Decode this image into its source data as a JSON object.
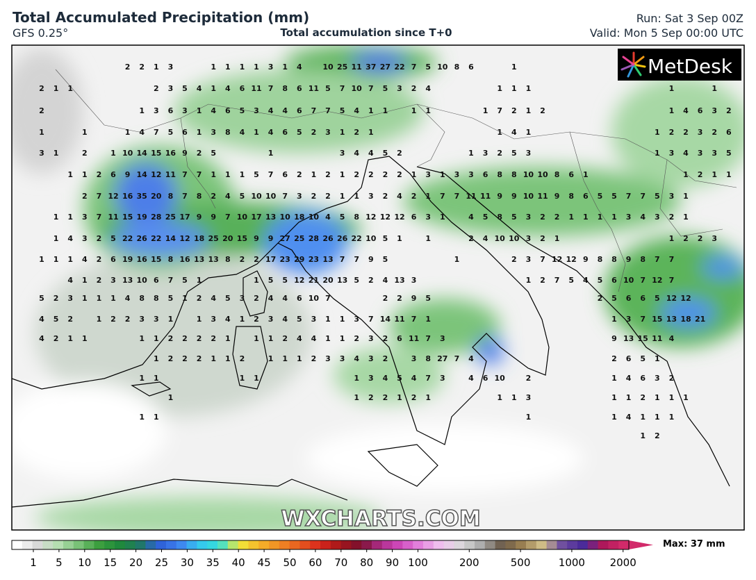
{
  "header": {
    "title": "Total Accumulated Precipitation (mm)",
    "model": "GFS 0.25°",
    "subtitle": "Total accumulation since T+0",
    "run": "Run: Sat 3 Sep 00Z",
    "valid": "Valid: Mon 5 Sep 00:00 UTC"
  },
  "logo": "MetDesk",
  "watermark": "WXCHARTS.COM",
  "map": {
    "grid": [
      [
        null,
        null,
        null,
        null,
        null,
        null,
        2,
        2,
        1,
        3,
        null,
        null,
        1,
        1,
        1,
        1,
        3,
        1,
        4,
        null,
        10,
        25,
        11,
        37,
        27,
        22,
        7,
        5,
        10,
        8,
        6,
        null,
        null,
        1
      ],
      [
        2,
        1,
        1,
        null,
        null,
        null,
        null,
        null,
        2,
        3,
        5,
        4,
        1,
        4,
        6,
        11,
        7,
        8,
        6,
        11,
        5,
        7,
        10,
        7,
        5,
        3,
        2,
        4,
        null,
        null,
        null,
        null,
        1,
        1,
        1,
        null,
        null,
        null,
        null,
        null,
        null,
        null,
        null,
        null,
        1,
        null,
        null,
        1
      ],
      [
        2,
        null,
        null,
        null,
        null,
        null,
        null,
        1,
        3,
        6,
        3,
        1,
        4,
        6,
        5,
        3,
        4,
        4,
        6,
        7,
        7,
        5,
        4,
        1,
        1,
        null,
        1,
        1,
        null,
        null,
        null,
        1,
        7,
        2,
        1,
        2,
        null,
        null,
        null,
        null,
        null,
        null,
        null,
        null,
        1,
        4,
        6,
        3,
        2
      ],
      [
        1,
        null,
        null,
        1,
        null,
        null,
        1,
        4,
        7,
        5,
        6,
        1,
        3,
        8,
        4,
        1,
        4,
        6,
        5,
        2,
        3,
        1,
        2,
        1,
        null,
        null,
        null,
        null,
        null,
        null,
        null,
        null,
        1,
        4,
        1,
        null,
        null,
        null,
        null,
        null,
        null,
        null,
        null,
        1,
        2,
        2,
        3,
        2,
        6
      ],
      [
        3,
        1,
        null,
        2,
        null,
        1,
        10,
        14,
        15,
        16,
        9,
        2,
        5,
        null,
        null,
        null,
        1,
        null,
        null,
        null,
        null,
        3,
        4,
        4,
        5,
        2,
        null,
        null,
        null,
        null,
        1,
        3,
        2,
        5,
        3,
        null,
        null,
        null,
        null,
        null,
        null,
        null,
        null,
        1,
        3,
        4,
        3,
        3,
        5
      ],
      [
        null,
        null,
        1,
        1,
        2,
        6,
        9,
        14,
        12,
        11,
        7,
        7,
        1,
        1,
        1,
        5,
        7,
        6,
        2,
        1,
        2,
        1,
        2,
        2,
        2,
        2,
        1,
        3,
        1,
        3,
        3,
        6,
        8,
        8,
        10,
        10,
        8,
        6,
        1,
        null,
        null,
        null,
        null,
        null,
        null,
        1,
        2,
        1,
        1
      ],
      [
        null,
        null,
        null,
        2,
        7,
        12,
        16,
        35,
        20,
        8,
        7,
        8,
        2,
        4,
        5,
        10,
        10,
        7,
        3,
        2,
        2,
        1,
        1,
        3,
        2,
        4,
        2,
        1,
        7,
        7,
        11,
        11,
        9,
        9,
        10,
        11,
        9,
        8,
        6,
        5,
        5,
        7,
        7,
        5,
        3,
        1
      ],
      [
        null,
        1,
        1,
        3,
        7,
        11,
        15,
        19,
        28,
        25,
        17,
        9,
        9,
        7,
        10,
        17,
        13,
        10,
        18,
        10,
        4,
        5,
        8,
        12,
        12,
        12,
        6,
        3,
        1,
        null,
        4,
        5,
        8,
        5,
        3,
        2,
        2,
        1,
        1,
        1,
        1,
        3,
        4,
        3,
        2,
        1
      ],
      [
        null,
        1,
        4,
        3,
        2,
        5,
        22,
        26,
        22,
        14,
        12,
        18,
        25,
        20,
        15,
        9,
        9,
        27,
        25,
        28,
        26,
        26,
        22,
        10,
        5,
        1,
        null,
        1,
        null,
        null,
        2,
        4,
        10,
        10,
        3,
        2,
        1,
        null,
        null,
        null,
        null,
        null,
        null,
        null,
        1,
        2,
        2,
        3
      ],
      [
        1,
        1,
        1,
        4,
        2,
        6,
        19,
        16,
        15,
        8,
        16,
        13,
        13,
        8,
        2,
        2,
        17,
        23,
        29,
        23,
        13,
        7,
        7,
        9,
        5,
        null,
        null,
        null,
        null,
        1,
        null,
        null,
        null,
        2,
        3,
        7,
        12,
        12,
        9,
        8,
        8,
        9,
        8,
        7,
        7
      ],
      [
        null,
        null,
        4,
        1,
        2,
        3,
        13,
        10,
        6,
        7,
        5,
        1,
        null,
        null,
        null,
        1,
        5,
        5,
        12,
        21,
        20,
        13,
        5,
        2,
        4,
        13,
        3,
        null,
        null,
        null,
        null,
        null,
        null,
        null,
        1,
        2,
        7,
        5,
        4,
        5,
        6,
        10,
        7,
        12,
        7
      ],
      [
        5,
        2,
        3,
        1,
        1,
        1,
        4,
        8,
        8,
        5,
        1,
        2,
        4,
        5,
        3,
        2,
        4,
        4,
        6,
        10,
        7,
        null,
        null,
        null,
        2,
        2,
        9,
        5,
        null,
        null,
        null,
        null,
        null,
        null,
        null,
        null,
        null,
        null,
        null,
        2,
        5,
        6,
        6,
        5,
        12,
        12
      ],
      [
        4,
        5,
        2,
        null,
        1,
        2,
        2,
        3,
        3,
        1,
        null,
        1,
        3,
        4,
        1,
        2,
        3,
        4,
        5,
        3,
        1,
        1,
        3,
        7,
        14,
        11,
        7,
        1,
        null,
        null,
        null,
        null,
        null,
        null,
        null,
        null,
        null,
        null,
        null,
        null,
        1,
        3,
        7,
        15,
        13,
        18,
        21
      ],
      [
        4,
        2,
        1,
        1,
        null,
        null,
        null,
        1,
        1,
        2,
        2,
        2,
        2,
        1,
        null,
        1,
        1,
        2,
        4,
        4,
        1,
        1,
        2,
        3,
        2,
        6,
        11,
        7,
        3,
        null,
        null,
        null,
        null,
        null,
        null,
        null,
        null,
        null,
        null,
        null,
        9,
        13,
        15,
        11,
        4
      ],
      [
        null,
        null,
        null,
        null,
        null,
        null,
        null,
        null,
        1,
        2,
        2,
        2,
        1,
        1,
        2,
        null,
        1,
        1,
        1,
        2,
        3,
        3,
        4,
        3,
        2,
        null,
        3,
        8,
        27,
        7,
        4,
        null,
        null,
        null,
        null,
        null,
        null,
        null,
        null,
        null,
        2,
        6,
        5,
        1
      ],
      [
        null,
        null,
        null,
        null,
        null,
        null,
        null,
        1,
        1,
        null,
        null,
        null,
        null,
        null,
        1,
        1,
        null,
        null,
        null,
        null,
        null,
        null,
        1,
        3,
        4,
        5,
        4,
        7,
        3,
        null,
        4,
        6,
        10,
        null,
        2,
        null,
        null,
        null,
        null,
        null,
        1,
        4,
        6,
        3,
        2
      ],
      [
        null,
        null,
        null,
        null,
        null,
        null,
        null,
        null,
        null,
        1,
        null,
        null,
        null,
        null,
        null,
        null,
        null,
        null,
        null,
        null,
        null,
        null,
        1,
        2,
        2,
        1,
        2,
        1,
        null,
        null,
        null,
        null,
        1,
        1,
        3,
        null,
        null,
        null,
        null,
        null,
        1,
        1,
        2,
        1,
        1,
        1
      ],
      [
        null,
        null,
        null,
        null,
        null,
        null,
        null,
        1,
        1,
        null,
        null,
        null,
        null,
        null,
        null,
        null,
        null,
        null,
        null,
        null,
        null,
        null,
        null,
        null,
        null,
        null,
        null,
        null,
        null,
        null,
        null,
        null,
        null,
        null,
        1,
        null,
        null,
        null,
        null,
        null,
        1,
        4,
        1,
        1,
        1
      ],
      [
        null,
        null,
        null,
        null,
        null,
        null,
        null,
        null,
        null,
        null,
        null,
        null,
        null,
        null,
        null,
        null,
        null,
        null,
        null,
        null,
        null,
        null,
        null,
        null,
        null,
        null,
        null,
        null,
        null,
        null,
        null,
        null,
        null,
        null,
        null,
        null,
        null,
        null,
        null,
        null,
        null,
        null,
        1,
        2
      ]
    ]
  },
  "colorbar": {
    "ticks": [
      1,
      5,
      10,
      15,
      20,
      25,
      30,
      35,
      40,
      45,
      50,
      60,
      70,
      80,
      90,
      100,
      200,
      500,
      1000,
      2000
    ],
    "max_label": "Max: 37 mm"
  }
}
